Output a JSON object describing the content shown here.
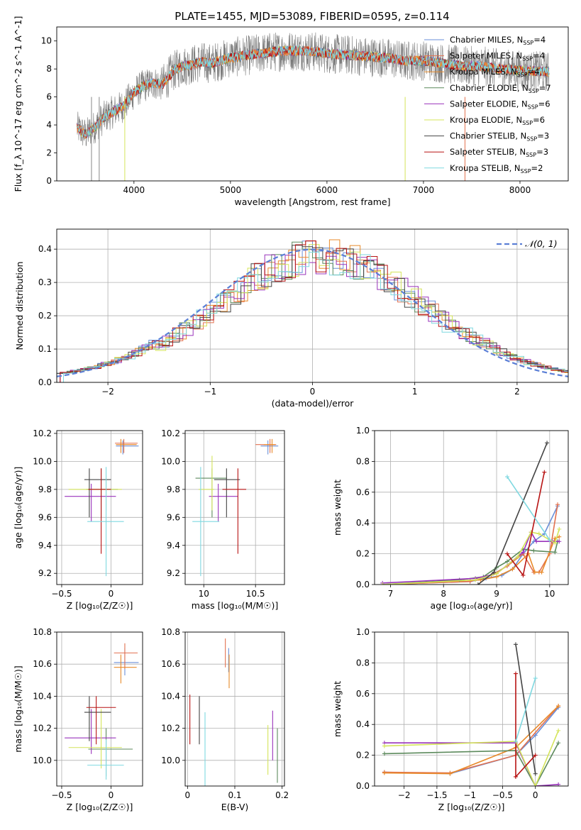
{
  "figure_title": "PLATE=1455, MJD=53089, FIBERID=0595, z=0.114",
  "series_styles": [
    {
      "name": "Chabrier MILES",
      "nssp": "4",
      "color": "#6a8fd8"
    },
    {
      "name": "Salpeter MILES",
      "nssp": "4",
      "color": "#e2714f"
    },
    {
      "name": "Kroupa MILES",
      "nssp": "4",
      "color": "#e88a2a"
    },
    {
      "name": "Chabrier ELODIE",
      "nssp": "7",
      "color": "#5c8a5c"
    },
    {
      "name": "Salpeter ELODIE",
      "nssp": "6",
      "color": "#9933bb"
    },
    {
      "name": "Kroupa ELODIE",
      "nssp": "6",
      "color": "#d4e45a"
    },
    {
      "name": "Chabrier STELIB",
      "nssp": "3",
      "color": "#444444"
    },
    {
      "name": "Salpeter STELIB",
      "nssp": "3",
      "color": "#b81414"
    },
    {
      "name": "Kroupa STELIB",
      "nssp": "2",
      "color": "#7fd8e0"
    }
  ],
  "chart_data": [
    {
      "id": "spectrum",
      "type": "line",
      "xlabel": "wavelength [Angstrom, rest frame]",
      "ylabel": "Flux [f_λ 10^-17 erg cm^-2 s^-1 A^-1]",
      "xlim": [
        3200,
        8500
      ],
      "ylim": [
        0,
        11
      ],
      "xticks": [
        4000,
        5000,
        6000,
        7000,
        8000
      ],
      "yticks": [
        0,
        2,
        4,
        6,
        8,
        10
      ],
      "grid": false,
      "legend": "right",
      "continuum": [
        [
          3410,
          3.8
        ],
        [
          3500,
          3.3
        ],
        [
          3600,
          3.9
        ],
        [
          3700,
          4.6
        ],
        [
          3800,
          5.0
        ],
        [
          3900,
          5.4
        ],
        [
          4000,
          6.3
        ],
        [
          4100,
          6.8
        ],
        [
          4200,
          7.0
        ],
        [
          4300,
          6.9
        ],
        [
          4400,
          7.8
        ],
        [
          4500,
          8.2
        ],
        [
          4600,
          8.3
        ],
        [
          4700,
          8.5
        ],
        [
          4800,
          8.4
        ],
        [
          4900,
          8.6
        ],
        [
          5000,
          8.8
        ],
        [
          5200,
          9.0
        ],
        [
          5400,
          9.2
        ],
        [
          5600,
          9.3
        ],
        [
          5800,
          9.3
        ],
        [
          6000,
          9.1
        ],
        [
          6200,
          9.0
        ],
        [
          6400,
          8.9
        ],
        [
          6600,
          8.8
        ],
        [
          6800,
          8.6
        ],
        [
          7000,
          8.6
        ],
        [
          7200,
          8.4
        ],
        [
          7400,
          8.2
        ],
        [
          7600,
          8.2
        ],
        [
          7800,
          8.0
        ],
        [
          8000,
          7.9
        ],
        [
          8300,
          7.8
        ]
      ]
    },
    {
      "id": "residuals",
      "type": "histogram",
      "xlabel": "(data-model)/error",
      "ylabel": "Normed distribution",
      "xlim": [
        -2.5,
        2.5
      ],
      "ylim": [
        0,
        0.46
      ],
      "xticks": [
        -2,
        -1,
        0,
        1,
        2
      ],
      "yticks": [
        0.0,
        0.1,
        0.2,
        0.3,
        0.4
      ],
      "grid": true,
      "legend": "top-right",
      "reference_curve": "𝒩(0, 1)"
    },
    {
      "id": "age_vs_Z",
      "type": "scatter",
      "xlabel": "Z [log₁₀(Z/Z☉)]",
      "ylabel": "age [log₁₀(age/yr)]",
      "xlim": [
        -0.55,
        0.32
      ],
      "ylim": [
        9.12,
        10.22
      ],
      "xticks": [
        -0.5,
        0.0
      ],
      "yticks": [
        9.2,
        9.4,
        9.6,
        9.8,
        10.0,
        10.2
      ],
      "grid": true,
      "points": [
        {
          "x": 0.12,
          "y": 10.11,
          "xlo": 0.05,
          "xhi": 0.28,
          "ylo": 10.05,
          "yhi": 10.15
        },
        {
          "x": 0.13,
          "y": 10.13,
          "xlo": 0.04,
          "xhi": 0.27,
          "ylo": 10.06,
          "yhi": 10.16
        },
        {
          "x": 0.1,
          "y": 10.12,
          "xlo": 0.05,
          "xhi": 0.26,
          "ylo": 10.06,
          "yhi": 10.16
        },
        {
          "x": -0.1,
          "y": 9.8,
          "xlo": -0.25,
          "xhi": 0.07,
          "ylo": 9.6,
          "yhi": 9.95
        },
        {
          "x": -0.2,
          "y": 9.75,
          "xlo": -0.47,
          "xhi": 0.05,
          "ylo": 9.57,
          "yhi": 9.84
        },
        {
          "x": -0.05,
          "y": 9.8,
          "xlo": -0.43,
          "xhi": 0.11,
          "ylo": 9.65,
          "yhi": 9.9
        },
        {
          "x": -0.22,
          "y": 9.87,
          "xlo": -0.27,
          "xhi": 0.0,
          "ylo": 9.6,
          "yhi": 9.95
        },
        {
          "x": -0.1,
          "y": 9.8,
          "xlo": -0.23,
          "xhi": 0.0,
          "ylo": 9.34,
          "yhi": 9.95
        },
        {
          "x": -0.05,
          "y": 9.57,
          "xlo": -0.24,
          "xhi": 0.13,
          "ylo": 9.18,
          "yhi": 9.96
        }
      ]
    },
    {
      "id": "age_vs_mass",
      "type": "scatter",
      "xlabel": "mass [log₁₀(M/M☉)]",
      "ylabel": "",
      "xlim": [
        9.82,
        10.78
      ],
      "ylim": [
        9.12,
        10.22
      ],
      "xticks": [
        10.0,
        10.5
      ],
      "yticks": [
        9.2,
        9.4,
        9.6,
        9.8,
        10.0,
        10.2
      ],
      "grid": true,
      "points": [
        {
          "x": 10.62,
          "y": 10.11,
          "xlo": 10.55,
          "xhi": 10.72,
          "ylo": 10.05,
          "yhi": 10.15
        },
        {
          "x": 10.64,
          "y": 10.12,
          "xlo": 10.5,
          "xhi": 10.7,
          "ylo": 10.06,
          "yhi": 10.16
        },
        {
          "x": 10.66,
          "y": 10.12,
          "xlo": 10.58,
          "xhi": 10.69,
          "ylo": 10.06,
          "yhi": 10.16
        },
        {
          "x": 10.08,
          "y": 9.88,
          "xlo": 9.92,
          "xhi": 10.22,
          "ylo": 9.6,
          "yhi": 9.95
        },
        {
          "x": 10.14,
          "y": 9.75,
          "xlo": 10.05,
          "xhi": 10.33,
          "ylo": 9.57,
          "yhi": 9.84
        },
        {
          "x": 10.08,
          "y": 9.8,
          "xlo": 9.95,
          "xhi": 10.1,
          "ylo": 9.65,
          "yhi": 10.04
        },
        {
          "x": 10.22,
          "y": 9.87,
          "xlo": 10.1,
          "xhi": 10.35,
          "ylo": 9.6,
          "yhi": 9.95
        },
        {
          "x": 10.33,
          "y": 9.8,
          "xlo": 10.18,
          "xhi": 10.41,
          "ylo": 9.34,
          "yhi": 9.95
        },
        {
          "x": 9.97,
          "y": 9.57,
          "xlo": 9.89,
          "xhi": 10.15,
          "ylo": 9.18,
          "yhi": 9.96
        }
      ]
    },
    {
      "id": "weight_vs_age",
      "type": "line",
      "xlabel": "age [log₁₀(age/yr)]",
      "ylabel": "mass weight",
      "xlim": [
        6.7,
        10.35
      ],
      "ylim": [
        0,
        1
      ],
      "xticks": [
        7,
        8,
        9,
        10
      ],
      "yticks": [
        0.0,
        0.2,
        0.4,
        0.6,
        0.8,
        1.0
      ],
      "grid": true,
      "series": [
        {
          "x": [
            6.85,
            8.5,
            8.8,
            9.1,
            9.3,
            9.5,
            9.7,
            9.9,
            10.15
          ],
          "y": [
            0.0,
            0.02,
            0.04,
            0.06,
            0.1,
            0.2,
            0.28,
            0.33,
            0.51
          ]
        },
        {
          "x": [
            6.85,
            8.5,
            8.9,
            9.2,
            9.5,
            9.7,
            9.8,
            10.0,
            10.15
          ],
          "y": [
            0.0,
            0.02,
            0.06,
            0.12,
            0.2,
            0.08,
            0.08,
            0.2,
            0.52
          ]
        },
        {
          "x": [
            6.85,
            8.7,
            9.0,
            9.3,
            9.6,
            9.72,
            9.85,
            10.1,
            10.18
          ],
          "y": [
            0.0,
            0.03,
            0.05,
            0.1,
            0.2,
            0.08,
            0.08,
            0.3,
            0.31
          ]
        },
        {
          "x": [
            6.85,
            8.3,
            8.75,
            9.0,
            9.2,
            9.5,
            9.7,
            10.1,
            10.15
          ],
          "y": [
            0.0,
            0.03,
            0.05,
            0.11,
            0.15,
            0.23,
            0.22,
            0.21,
            0.28
          ]
        },
        {
          "x": [
            6.85,
            8.6,
            9.0,
            9.5,
            9.65,
            9.75,
            10.05,
            10.18
          ],
          "y": [
            0.01,
            0.04,
            0.07,
            0.21,
            0.34,
            0.28,
            0.28,
            0.28
          ]
        },
        {
          "x": [
            6.85,
            8.6,
            9.0,
            9.4,
            9.65,
            9.8,
            10.1,
            10.18
          ],
          "y": [
            0.0,
            0.03,
            0.07,
            0.18,
            0.34,
            0.33,
            0.27,
            0.36
          ]
        },
        {
          "x": [
            8.65,
            8.95,
            9.95
          ],
          "y": [
            0.0,
            0.08,
            0.92
          ]
        },
        {
          "x": [
            9.2,
            9.5,
            9.9
          ],
          "y": [
            0.2,
            0.06,
            0.73
          ]
        },
        {
          "x": [
            9.2,
            10.0
          ],
          "y": [
            0.7,
            0.29
          ]
        }
      ]
    },
    {
      "id": "mass_vs_Z",
      "type": "scatter",
      "xlabel": "Z [log₁₀(Z/Z☉)]",
      "ylabel": "mass [log₁₀(M/M☉)]",
      "xlim": [
        -0.55,
        0.32
      ],
      "ylim": [
        9.84,
        10.8
      ],
      "xticks": [
        -0.5,
        0.0
      ],
      "yticks": [
        10.0,
        10.2,
        10.4,
        10.6,
        10.8
      ],
      "grid": true,
      "points": [
        {
          "x": 0.14,
          "y": 10.61,
          "xlo": 0.03,
          "xhi": 0.28,
          "ylo": 10.53,
          "yhi": 10.7
        },
        {
          "x": 0.14,
          "y": 10.67,
          "xlo": 0.03,
          "xhi": 0.27,
          "ylo": 10.57,
          "yhi": 10.73
        },
        {
          "x": 0.1,
          "y": 10.58,
          "xlo": 0.03,
          "xhi": 0.26,
          "ylo": 10.48,
          "yhi": 10.66
        },
        {
          "x": -0.05,
          "y": 10.07,
          "xlo": -0.23,
          "xhi": 0.22,
          "ylo": 9.9,
          "yhi": 10.2
        },
        {
          "x": -0.2,
          "y": 10.14,
          "xlo": -0.47,
          "xhi": 0.05,
          "ylo": 10.04,
          "yhi": 10.32
        },
        {
          "x": -0.1,
          "y": 10.08,
          "xlo": -0.43,
          "xhi": 0.11,
          "ylo": 9.95,
          "yhi": 10.32
        },
        {
          "x": -0.22,
          "y": 10.3,
          "xlo": -0.27,
          "xhi": 0.0,
          "ylo": 10.12,
          "yhi": 10.4
        },
        {
          "x": -0.15,
          "y": 10.33,
          "xlo": -0.25,
          "xhi": 0.05,
          "ylo": 10.1,
          "yhi": 10.4
        },
        {
          "x": -0.05,
          "y": 9.97,
          "xlo": -0.24,
          "xhi": 0.13,
          "ylo": 9.88,
          "yhi": 10.13
        }
      ]
    },
    {
      "id": "mass_vs_EBV",
      "type": "scatter",
      "xlabel": "E(B-V)",
      "ylabel": "",
      "xlim": [
        -0.005,
        0.205
      ],
      "ylim": [
        9.84,
        10.8
      ],
      "xticks": [
        0.0,
        0.1,
        0.2
      ],
      "yticks": [
        10.0,
        10.2,
        10.4,
        10.6,
        10.8
      ],
      "grid": true,
      "points": [
        {
          "x": 0.087,
          "y": 10.62,
          "ylo": 10.55,
          "yhi": 10.7
        },
        {
          "x": 0.08,
          "y": 10.65,
          "ylo": 10.58,
          "yhi": 10.76
        },
        {
          "x": 0.088,
          "y": 10.57,
          "ylo": 10.45,
          "yhi": 10.66
        },
        {
          "x": 0.19,
          "y": 10.07,
          "ylo": 9.86,
          "yhi": 10.2
        },
        {
          "x": 0.18,
          "y": 10.14,
          "ylo": 10.0,
          "yhi": 10.31
        },
        {
          "x": 0.17,
          "y": 10.02,
          "ylo": 9.91,
          "yhi": 10.22
        },
        {
          "x": 0.025,
          "y": 10.25,
          "ylo": 10.1,
          "yhi": 10.4
        },
        {
          "x": 0.005,
          "y": 10.25,
          "ylo": 10.1,
          "yhi": 10.41
        },
        {
          "x": 0.037,
          "y": 10.1,
          "ylo": 9.84,
          "yhi": 10.3
        }
      ]
    },
    {
      "id": "weight_vs_Z",
      "type": "line",
      "xlabel": "Z [log₁₀(Z/Z☉)]",
      "ylabel": "mass weight",
      "xlim": [
        -2.45,
        0.5
      ],
      "ylim": [
        0,
        1
      ],
      "xticks": [
        -2.0,
        -1.5,
        -1.0,
        -0.5,
        0.0
      ],
      "yticks": [
        0.0,
        0.2,
        0.4,
        0.6,
        0.8,
        1.0
      ],
      "grid": true,
      "series": [
        {
          "x": [
            -2.3,
            -1.3,
            -0.3,
            0.0,
            0.35
          ],
          "y": [
            0.09,
            0.08,
            0.2,
            0.33,
            0.51
          ]
        },
        {
          "x": [
            -2.3,
            -1.3,
            -0.3,
            0.35
          ],
          "y": [
            0.09,
            0.085,
            0.2,
            0.52
          ]
        },
        {
          "x": [
            -2.3,
            -1.3,
            -0.3,
            0.35
          ],
          "y": [
            0.085,
            0.08,
            0.25,
            0.52
          ]
        },
        {
          "x": [
            -2.3,
            -0.3,
            0.0,
            0.35
          ],
          "y": [
            0.21,
            0.23,
            0.0,
            0.28
          ]
        },
        {
          "x": [
            -2.3,
            -0.3,
            0.0,
            0.35
          ],
          "y": [
            0.28,
            0.28,
            0.0,
            0.01
          ]
        },
        {
          "x": [
            -2.3,
            -0.3,
            0.0,
            0.35
          ],
          "y": [
            0.26,
            0.29,
            0.0,
            0.36
          ]
        },
        {
          "x": [
            -0.3,
            0.0
          ],
          "y": [
            0.92,
            0.08
          ]
        },
        {
          "x": [
            -0.3,
            -0.3,
            0.0
          ],
          "y": [
            0.73,
            0.06,
            0.2
          ]
        },
        {
          "x": [
            -0.3,
            0.0
          ],
          "y": [
            0.29,
            0.7
          ]
        }
      ]
    }
  ]
}
